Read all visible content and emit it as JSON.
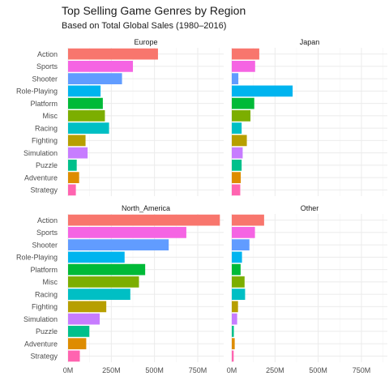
{
  "chart_data": {
    "type": "bar",
    "orientation": "horizontal",
    "faceted": true,
    "title": "Top Selling Game Genres by Region",
    "subtitle": "Based on Total Global Sales (1980–2016)",
    "xlabel": "",
    "ylabel": "",
    "xlim": [
      0,
      900
    ],
    "x_ticks": [
      0,
      250,
      500,
      750
    ],
    "x_tick_labels": [
      "0M",
      "250M",
      "500M",
      "750M"
    ],
    "grid": true,
    "legend": "none",
    "categories": [
      "Action",
      "Sports",
      "Shooter",
      "Role-Playing",
      "Platform",
      "Misc",
      "Racing",
      "Fighting",
      "Simulation",
      "Puzzle",
      "Adventure",
      "Strategy"
    ],
    "category_colors": [
      "#F8766D",
      "#F564E3",
      "#619CFF",
      "#00B4EF",
      "#00BA38",
      "#7CAE00",
      "#00BFC4",
      "#B79F00",
      "#C77CFF",
      "#00C08B",
      "#DE8C00",
      "#FF64B0"
    ],
    "panels": [
      {
        "name": "Europe",
        "values": [
          520,
          375,
          312,
          188,
          201,
          213,
          237,
          101,
          113,
          50,
          64,
          45
        ]
      },
      {
        "name": "Japan",
        "values": [
          159,
          135,
          38,
          352,
          130,
          108,
          57,
          87,
          63,
          57,
          52,
          49
        ]
      },
      {
        "name": "North_America",
        "values": [
          878,
          684,
          582,
          327,
          446,
          410,
          360,
          221,
          183,
          123,
          105,
          68
        ]
      },
      {
        "name": "Other",
        "values": [
          187,
          134,
          102,
          59,
          51,
          74,
          77,
          36,
          31,
          12,
          17,
          11
        ]
      }
    ]
  }
}
